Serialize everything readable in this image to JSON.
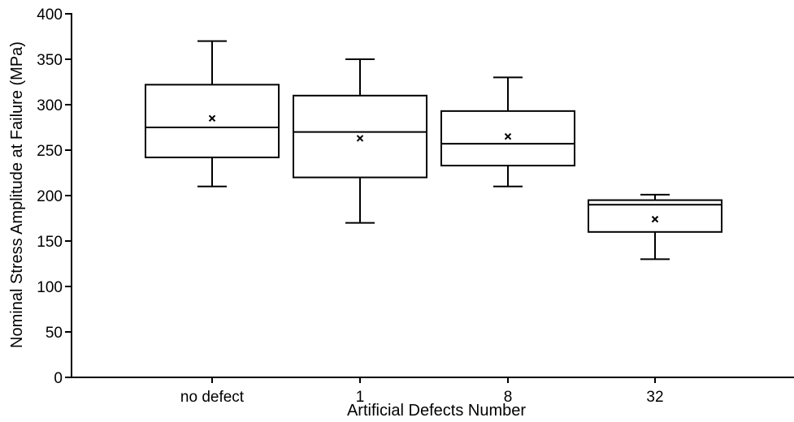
{
  "chart_data": {
    "type": "box",
    "xlabel": "Artificial Defects Number",
    "ylabel": "Nominal Stress Amplitude at Failure (MPa)",
    "ylim": [
      0,
      400
    ],
    "yticks": [
      0,
      50,
      100,
      150,
      200,
      250,
      300,
      350,
      400
    ],
    "grid": false,
    "categories": [
      "no defect",
      "1",
      "8",
      "32"
    ],
    "boxes": [
      {
        "category": "no defect",
        "min": 210,
        "q1": 242,
        "median": 275,
        "q3": 322,
        "max": 370,
        "mean": 285
      },
      {
        "category": "1",
        "min": 170,
        "q1": 220,
        "median": 270,
        "q3": 310,
        "max": 350,
        "mean": 263
      },
      {
        "category": "8",
        "min": 210,
        "q1": 233,
        "median": 257,
        "q3": 293,
        "max": 330,
        "mean": 265
      },
      {
        "category": "32",
        "min": 130,
        "q1": 160,
        "median": 190,
        "q3": 195,
        "max": 201,
        "mean": 174
      }
    ]
  }
}
